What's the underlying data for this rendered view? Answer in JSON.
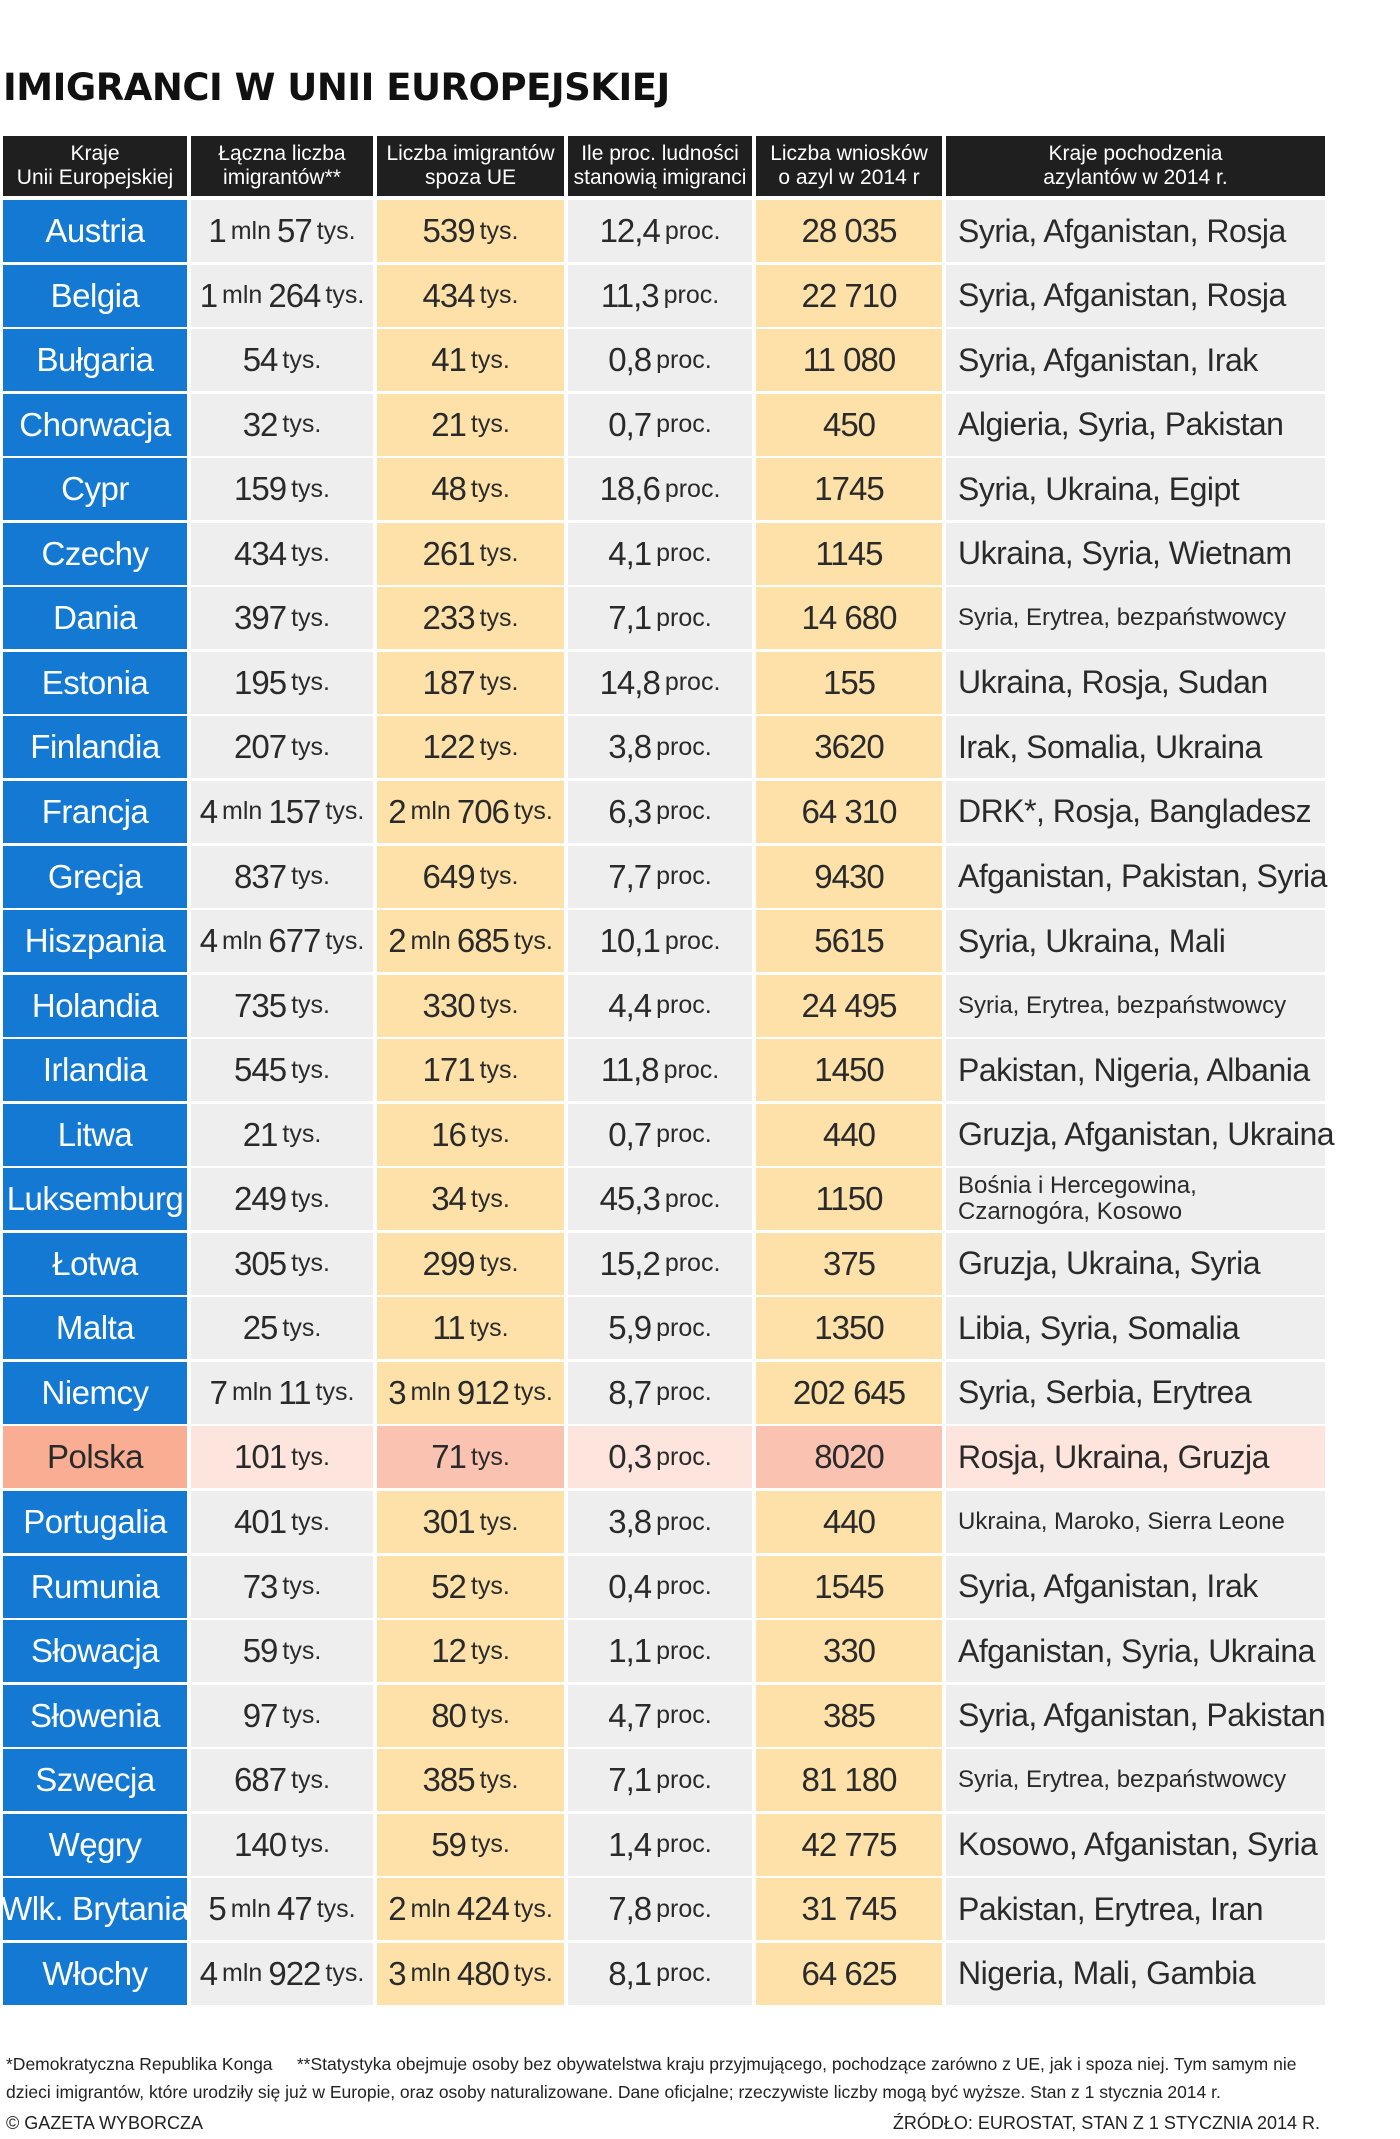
{
  "title": "IMIGRANCI W UNII EUROPEJSKIEJ",
  "headers": [
    [
      "Kraje",
      "Unii Europejskiej"
    ],
    [
      "Łączna liczba",
      "imigrantów**"
    ],
    [
      "Liczba imigrantów",
      "spoza UE"
    ],
    [
      "Ile proc. ludności",
      "stanowią imigranci"
    ],
    [
      "Liczba wniosków",
      "o azyl w 2014 r"
    ],
    [
      "Kraje pochodzenia",
      "azylantów w 2014 r."
    ]
  ],
  "highlight_color": "#f9ad93",
  "accent_color": "#1479d3",
  "chart_data": {
    "type": "table",
    "title": "IMIGRANCI W UNII EUROPEJSKIEJ",
    "highlighted_row": "Polska",
    "rows": [
      {
        "country": "Austria",
        "total": [
          [
            "1",
            "mln"
          ],
          [
            "57",
            "tys."
          ]
        ],
        "non_eu": [
          [
            "539",
            "tys."
          ]
        ],
        "percent": [
          [
            "12,4",
            "proc."
          ]
        ],
        "asylum": "28 035",
        "origin": "Syria, Afganistan, Rosja",
        "origin_style": "normal"
      },
      {
        "country": "Belgia",
        "total": [
          [
            "1",
            "mln"
          ],
          [
            "264",
            "tys."
          ]
        ],
        "non_eu": [
          [
            "434",
            "tys."
          ]
        ],
        "percent": [
          [
            "11,3",
            "proc."
          ]
        ],
        "asylum": "22 710",
        "origin": "Syria, Afganistan, Rosja",
        "origin_style": "normal"
      },
      {
        "country": "Bułgaria",
        "total": [
          [
            "54",
            "tys."
          ]
        ],
        "non_eu": [
          [
            "41",
            "tys."
          ]
        ],
        "percent": [
          [
            "0,8",
            "proc."
          ]
        ],
        "asylum": "11 080",
        "origin": "Syria, Afganistan, Irak",
        "origin_style": "normal"
      },
      {
        "country": "Chorwacja",
        "total": [
          [
            "32",
            "tys."
          ]
        ],
        "non_eu": [
          [
            "21",
            "tys."
          ]
        ],
        "percent": [
          [
            "0,7",
            "proc."
          ]
        ],
        "asylum": "450",
        "origin": "Algieria, Syria, Pakistan",
        "origin_style": "normal"
      },
      {
        "country": "Cypr",
        "total": [
          [
            "159",
            "tys."
          ]
        ],
        "non_eu": [
          [
            "48",
            "tys."
          ]
        ],
        "percent": [
          [
            "18,6",
            "proc."
          ]
        ],
        "asylum": "1745",
        "origin": "Syria, Ukraina, Egipt",
        "origin_style": "normal"
      },
      {
        "country": "Czechy",
        "total": [
          [
            "434",
            "tys."
          ]
        ],
        "non_eu": [
          [
            "261",
            "tys."
          ]
        ],
        "percent": [
          [
            "4,1",
            "proc."
          ]
        ],
        "asylum": "1145",
        "origin": "Ukraina, Syria, Wietnam",
        "origin_style": "normal"
      },
      {
        "country": "Dania",
        "total": [
          [
            "397",
            "tys."
          ]
        ],
        "non_eu": [
          [
            "233",
            "tys."
          ]
        ],
        "percent": [
          [
            "7,1",
            "proc."
          ]
        ],
        "asylum": "14 680",
        "origin": "Syria, Erytrea, bezpaństwowcy",
        "origin_style": "small"
      },
      {
        "country": "Estonia",
        "total": [
          [
            "195",
            "tys."
          ]
        ],
        "non_eu": [
          [
            "187",
            "tys."
          ]
        ],
        "percent": [
          [
            "14,8",
            "proc."
          ]
        ],
        "asylum": "155",
        "origin": "Ukraina, Rosja, Sudan",
        "origin_style": "normal"
      },
      {
        "country": "Finlandia",
        "total": [
          [
            "207",
            "tys."
          ]
        ],
        "non_eu": [
          [
            "122",
            "tys."
          ]
        ],
        "percent": [
          [
            "3,8",
            "proc."
          ]
        ],
        "asylum": "3620",
        "origin": "Irak, Somalia, Ukraina",
        "origin_style": "normal"
      },
      {
        "country": "Francja",
        "total": [
          [
            "4",
            "mln"
          ],
          [
            "157",
            "tys."
          ]
        ],
        "non_eu": [
          [
            "2",
            "mln"
          ],
          [
            "706",
            "tys."
          ]
        ],
        "percent": [
          [
            "6,3",
            "proc."
          ]
        ],
        "asylum": "64 310",
        "origin": "DRK*, Rosja, Bangladesz",
        "origin_style": "normal"
      },
      {
        "country": "Grecja",
        "total": [
          [
            "837",
            "tys."
          ]
        ],
        "non_eu": [
          [
            "649",
            "tys."
          ]
        ],
        "percent": [
          [
            "7,7",
            "proc."
          ]
        ],
        "asylum": "9430",
        "origin": "Afganistan, Pakistan, Syria",
        "origin_style": "normal"
      },
      {
        "country": "Hiszpania",
        "total": [
          [
            "4",
            "mln"
          ],
          [
            "677",
            "tys."
          ]
        ],
        "non_eu": [
          [
            "2",
            "mln"
          ],
          [
            "685",
            "tys."
          ]
        ],
        "percent": [
          [
            "10,1",
            "proc."
          ]
        ],
        "asylum": "5615",
        "origin": "Syria, Ukraina, Mali",
        "origin_style": "normal"
      },
      {
        "country": "Holandia",
        "total": [
          [
            "735",
            "tys."
          ]
        ],
        "non_eu": [
          [
            "330",
            "tys."
          ]
        ],
        "percent": [
          [
            "4,4",
            "proc."
          ]
        ],
        "asylum": "24 495",
        "origin": "Syria, Erytrea, bezpaństwowcy",
        "origin_style": "small"
      },
      {
        "country": "Irlandia",
        "total": [
          [
            "545",
            "tys."
          ]
        ],
        "non_eu": [
          [
            "171",
            "tys."
          ]
        ],
        "percent": [
          [
            "11,8",
            "proc."
          ]
        ],
        "asylum": "1450",
        "origin": "Pakistan, Nigeria, Albania",
        "origin_style": "normal"
      },
      {
        "country": "Litwa",
        "total": [
          [
            "21",
            "tys."
          ]
        ],
        "non_eu": [
          [
            "16",
            "tys."
          ]
        ],
        "percent": [
          [
            "0,7",
            "proc."
          ]
        ],
        "asylum": "440",
        "origin": "Gruzja, Afganistan, Ukraina",
        "origin_style": "normal"
      },
      {
        "country": "Luksemburg",
        "total": [
          [
            "249",
            "tys."
          ]
        ],
        "non_eu": [
          [
            "34",
            "tys."
          ]
        ],
        "percent": [
          [
            "45,3",
            "proc."
          ]
        ],
        "asylum": "1150",
        "origin": "Bośnia i Hercegowina, Czarnogóra, Kosowo",
        "origin_style": "two"
      },
      {
        "country": "Łotwa",
        "total": [
          [
            "305",
            "tys."
          ]
        ],
        "non_eu": [
          [
            "299",
            "tys."
          ]
        ],
        "percent": [
          [
            "15,2",
            "proc."
          ]
        ],
        "asylum": "375",
        "origin": "Gruzja, Ukraina, Syria",
        "origin_style": "normal"
      },
      {
        "country": "Malta",
        "total": [
          [
            "25",
            "tys."
          ]
        ],
        "non_eu": [
          [
            "11",
            "tys."
          ]
        ],
        "percent": [
          [
            "5,9",
            "proc."
          ]
        ],
        "asylum": "1350",
        "origin": "Libia, Syria, Somalia",
        "origin_style": "normal"
      },
      {
        "country": "Niemcy",
        "total": [
          [
            "7",
            "mln"
          ],
          [
            "11",
            "tys."
          ]
        ],
        "non_eu": [
          [
            "3",
            "mln"
          ],
          [
            "912",
            "tys."
          ]
        ],
        "percent": [
          [
            "8,7",
            "proc."
          ]
        ],
        "asylum": "202 645",
        "origin": "Syria, Serbia, Erytrea",
        "origin_style": "normal"
      },
      {
        "country": "Polska",
        "total": [
          [
            "101",
            "tys."
          ]
        ],
        "non_eu": [
          [
            "71",
            "tys."
          ]
        ],
        "percent": [
          [
            "0,3",
            "proc."
          ]
        ],
        "asylum": "8020",
        "origin": "Rosja, Ukraina, Gruzja",
        "origin_style": "normal"
      },
      {
        "country": "Portugalia",
        "total": [
          [
            "401",
            "tys."
          ]
        ],
        "non_eu": [
          [
            "301",
            "tys."
          ]
        ],
        "percent": [
          [
            "3,8",
            "proc."
          ]
        ],
        "asylum": "440",
        "origin": "Ukraina, Maroko, Sierra Leone",
        "origin_style": "small"
      },
      {
        "country": "Rumunia",
        "total": [
          [
            "73",
            "tys."
          ]
        ],
        "non_eu": [
          [
            "52",
            "tys."
          ]
        ],
        "percent": [
          [
            "0,4",
            "proc."
          ]
        ],
        "asylum": "1545",
        "origin": "Syria, Afganistan, Irak",
        "origin_style": "normal"
      },
      {
        "country": "Słowacja",
        "total": [
          [
            "59",
            "tys."
          ]
        ],
        "non_eu": [
          [
            "12",
            "tys."
          ]
        ],
        "percent": [
          [
            "1,1",
            "proc."
          ]
        ],
        "asylum": "330",
        "origin": "Afganistan, Syria, Ukraina",
        "origin_style": "normal"
      },
      {
        "country": "Słowenia",
        "total": [
          [
            "97",
            "tys."
          ]
        ],
        "non_eu": [
          [
            "80",
            "tys."
          ]
        ],
        "percent": [
          [
            "4,7",
            "proc."
          ]
        ],
        "asylum": "385",
        "origin": "Syria, Afganistan, Pakistan",
        "origin_style": "normal"
      },
      {
        "country": "Szwecja",
        "total": [
          [
            "687",
            "tys."
          ]
        ],
        "non_eu": [
          [
            "385",
            "tys."
          ]
        ],
        "percent": [
          [
            "7,1",
            "proc."
          ]
        ],
        "asylum": "81 180",
        "origin": "Syria, Erytrea, bezpaństwowcy",
        "origin_style": "small"
      },
      {
        "country": "Węgry",
        "total": [
          [
            "140",
            "tys."
          ]
        ],
        "non_eu": [
          [
            "59",
            "tys."
          ]
        ],
        "percent": [
          [
            "1,4",
            "proc."
          ]
        ],
        "asylum": "42 775",
        "origin": "Kosowo, Afganistan, Syria",
        "origin_style": "normal"
      },
      {
        "country": "Wlk. Brytania",
        "total": [
          [
            "5",
            "mln"
          ],
          [
            "47",
            "tys."
          ]
        ],
        "non_eu": [
          [
            "2",
            "mln"
          ],
          [
            "424",
            "tys."
          ]
        ],
        "percent": [
          [
            "7,8",
            "proc."
          ]
        ],
        "asylum": "31 745",
        "origin": "Pakistan, Erytrea, Iran",
        "origin_style": "normal"
      },
      {
        "country": "Włochy",
        "total": [
          [
            "4",
            "mln"
          ],
          [
            "922",
            "tys."
          ]
        ],
        "non_eu": [
          [
            "3",
            "mln"
          ],
          [
            "480",
            "tys."
          ]
        ],
        "percent": [
          [
            "8,1",
            "proc."
          ]
        ],
        "asylum": "64 625",
        "origin": "Nigeria, Mali, Gambia",
        "origin_style": "normal"
      }
    ]
  },
  "footnotes": [
    "*Demokratyczna Republika Konga",
    "**Statystyka obejmuje osoby bez obywatelstwa kraju przyjmującego, pochodzące zarówno z UE, jak i spoza niej. Tym samym nie dzieci imigrantów, które urodziły się już w Europie, oraz osoby naturalizowane. Dane oficjalne; rzeczywiste liczby mogą być wyższe. Stan z 1 stycznia 2014 r."
  ],
  "copyright": "© GAZETA WYBORCZA",
  "source": "ŹRÓDŁO: EUROSTAT, STAN Z 1 STYCZNIA 2014 R."
}
